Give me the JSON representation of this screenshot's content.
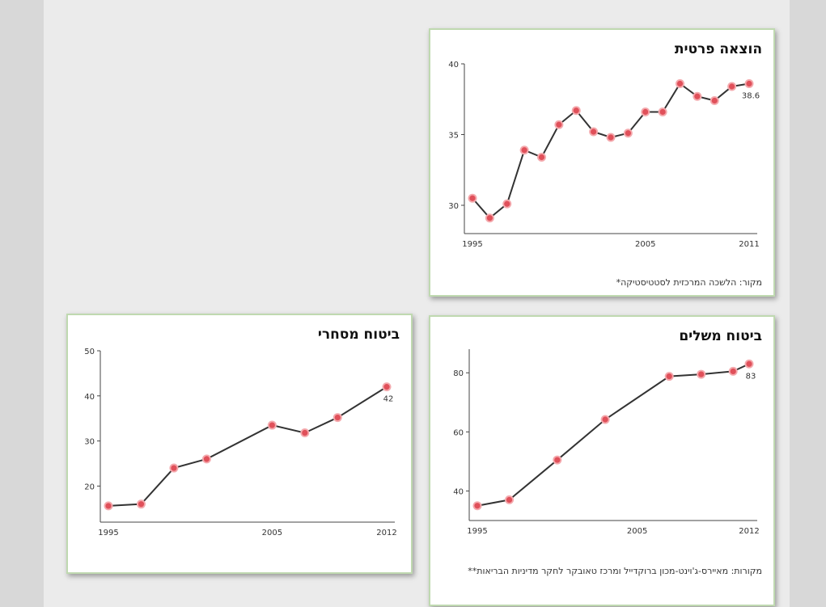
{
  "colors": {
    "line": "#333333",
    "marker": "#e0505a",
    "marker_ring": "#f4a9ad",
    "card_border": "#bfd9b0"
  },
  "chart_data": [
    {
      "id": "private-expenditure",
      "type": "line",
      "title": "הוצאה פרטית",
      "source": "מקור: הלשכה המרכזית לסטטיסטיקה*",
      "x": [
        1995,
        1996,
        1997,
        1998,
        1999,
        2000,
        2001,
        2002,
        2003,
        2004,
        2005,
        2006,
        2007,
        2008,
        2009,
        2010,
        2011
      ],
      "values": [
        30.5,
        29.1,
        30.1,
        33.9,
        33.4,
        35.7,
        36.7,
        35.2,
        34.8,
        35.1,
        36.6,
        36.6,
        38.6,
        37.7,
        37.4,
        38.4,
        38.6
      ],
      "xticks": [
        "1995",
        "2005",
        "2011"
      ],
      "xtick_values": [
        1995,
        2005,
        2011
      ],
      "yticks": [
        30,
        35,
        40
      ],
      "ylim": [
        28,
        40
      ],
      "xlim": [
        1995,
        2011
      ],
      "end_label": "38.6",
      "grid": false
    },
    {
      "id": "supplementary-insurance",
      "type": "line",
      "title": "ביטוח משלים",
      "source": "מקורות: מאיירס-ג'וינט-מכון ברוקדייל ומרכז טאובקר לחקר מדיניות הבריאות**",
      "x": [
        1995,
        1997,
        2000,
        2003,
        2007,
        2009,
        2011,
        2012
      ],
      "values": [
        35,
        37,
        50.5,
        64.2,
        78.8,
        79.5,
        80.5,
        83
      ],
      "xticks": [
        "1995",
        "2005",
        "2012"
      ],
      "xtick_values": [
        1995,
        2005,
        2012
      ],
      "yticks": [
        40,
        60,
        80
      ],
      "ylim": [
        30,
        88
      ],
      "xlim": [
        1995,
        2012
      ],
      "end_label": "83",
      "grid": false
    },
    {
      "id": "commercial-insurance",
      "type": "line",
      "title": "ביטוח מסחרי",
      "x": [
        1995,
        1997,
        1999,
        2001,
        2005,
        2007,
        2009,
        2012
      ],
      "values": [
        15.6,
        16,
        24,
        26,
        33.5,
        31.8,
        35.2,
        42
      ],
      "xticks": [
        "1995",
        "2005",
        "2012"
      ],
      "xtick_values": [
        1995,
        2005,
        2012
      ],
      "yticks": [
        20,
        30,
        40,
        50
      ],
      "ylim": [
        12,
        50
      ],
      "xlim": [
        1995,
        2012
      ],
      "end_label": "42",
      "grid": false
    }
  ]
}
